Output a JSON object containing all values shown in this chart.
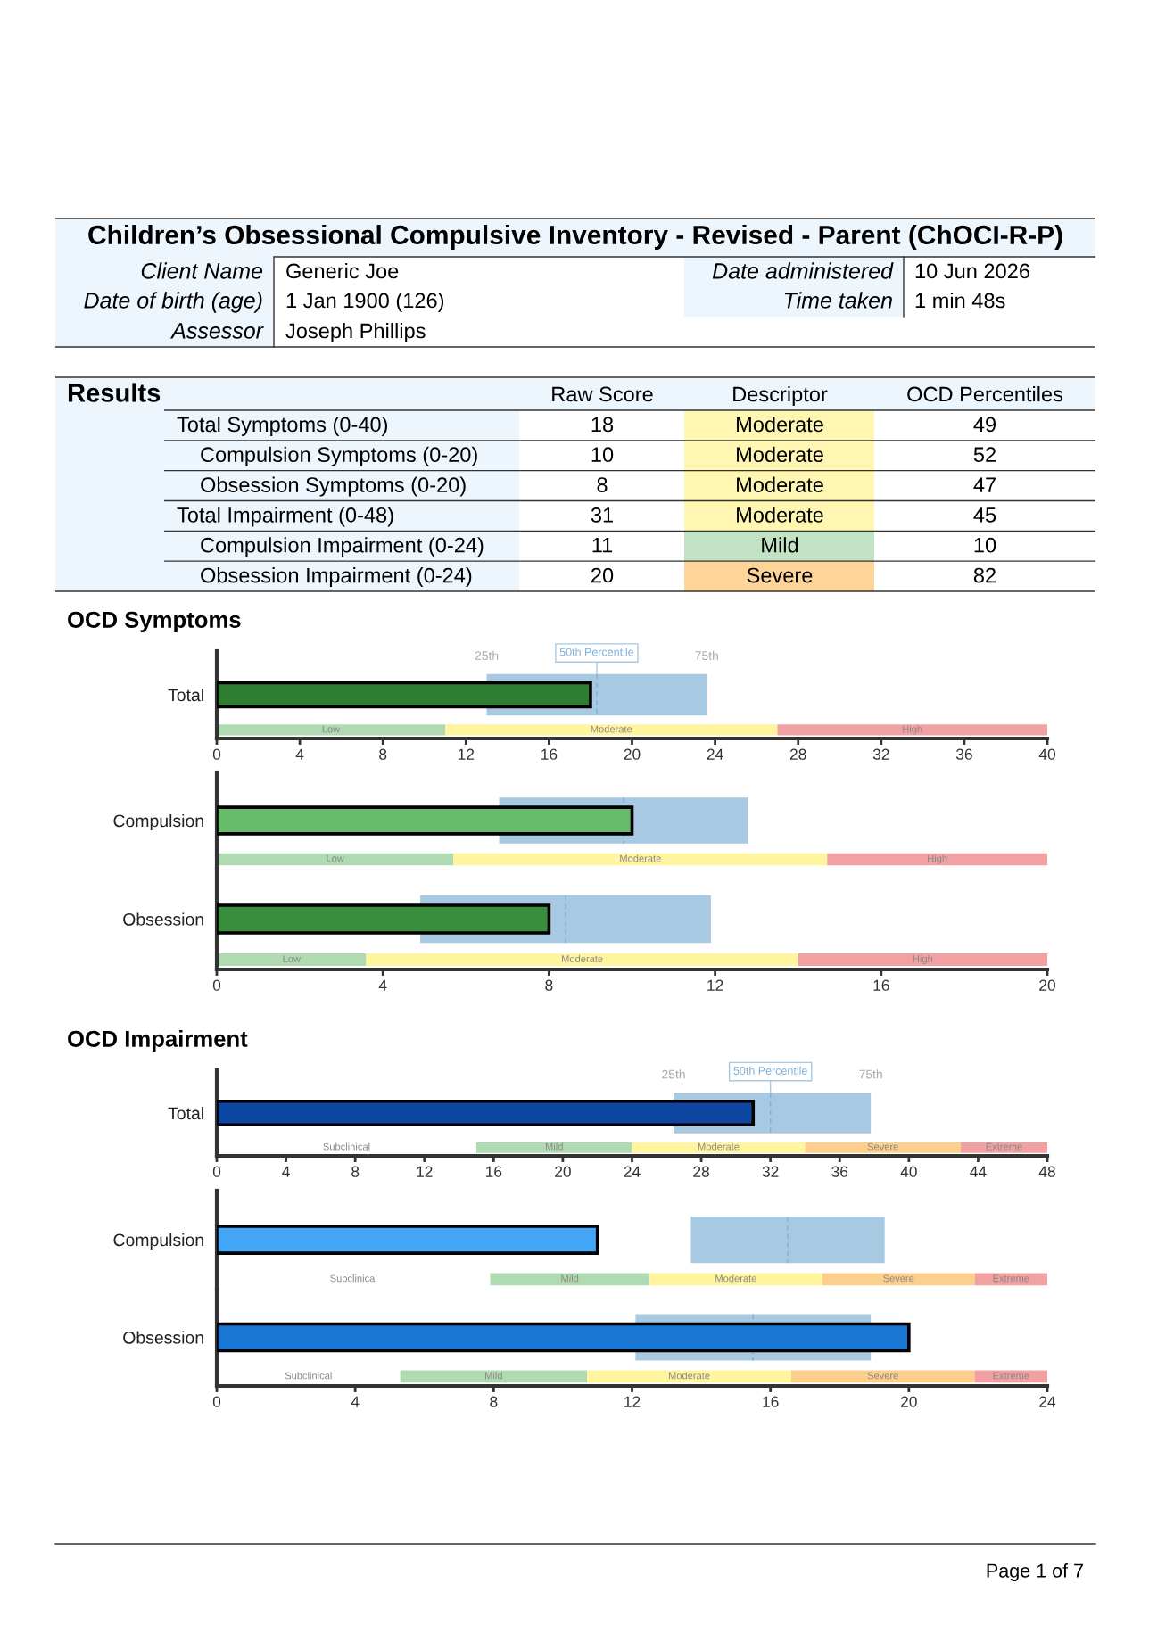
{
  "chart_data": [
    {
      "type": "other",
      "title": "Children’s Obsessional Compulsive Inventory - Revised - Parent (ChOCI-R-P)",
      "annotations": [
        "Client Name",
        "Generic Joe",
        "Date of birth (age)",
        "1 Jan 1900 (126)",
        "Assessor",
        "Joseph Phillips",
        "Date administered",
        "10 Jun 2026",
        "Time taken",
        "1 min 48s",
        "Page 1 of 7"
      ]
    },
    {
      "type": "other",
      "title": "Results",
      "annotations": [
        "Raw Score",
        "Descriptor",
        "OCD Percentiles",
        "Total Symptoms (0-40)",
        "18",
        "Moderate",
        "49",
        "Compulsion Symptoms (0-20)",
        "10",
        "Moderate",
        "52",
        "Obsession Symptoms (0-20)",
        "8",
        "Moderate",
        "47",
        "Total Impairment (0-48)",
        "31",
        "Moderate",
        "45",
        "Compulsion Impairment (0-24)",
        "11",
        "Mild",
        "10",
        "Obsession Impairment (0-24)",
        "20",
        "Severe",
        "82"
      ],
      "colors": [
        "#fff6b2",
        "#fff6b2",
        "#fff6b2",
        "#fff6b2",
        "#c2e2c4",
        "#ffd499"
      ]
    },
    {
      "type": "bar",
      "orientation": "horizontal",
      "title": "OCD Symptoms",
      "categories": [
        "Total"
      ],
      "series": [
        {
          "color": "#a7c9e2",
          "base": [
            13
          ],
          "values": [
            10.6
          ]
        },
        {
          "color": "#2e7d32",
          "values": [
            18
          ]
        }
      ],
      "xlim": [
        0,
        40
      ],
      "xticks": [
        0,
        4,
        8,
        12,
        16,
        20,
        24,
        28,
        32,
        36,
        40
      ],
      "ref_lines": [
        {
          "axis": "x",
          "value": 18.3,
          "label": "50th Percentile"
        }
      ],
      "bands": [
        {
          "axis": "x",
          "from": 0,
          "to": 11,
          "label": "Low",
          "color": "#b0dbb2"
        },
        {
          "axis": "x",
          "from": 11,
          "to": 27,
          "label": "Moderate",
          "color": "#fff59f"
        },
        {
          "axis": "x",
          "from": 27,
          "to": 40,
          "label": "High",
          "color": "#f1a1a1"
        }
      ],
      "annotations": [
        "25th",
        "75th"
      ]
    },
    {
      "type": "bar",
      "orientation": "horizontal",
      "categories": [
        "Compulsion"
      ],
      "series": [
        {
          "color": "#a7c9e2",
          "base": [
            6.8
          ],
          "values": [
            6.0
          ]
        },
        {
          "color": "#66bb6a",
          "values": [
            10
          ]
        }
      ],
      "xlim": [
        0,
        20
      ],
      "tick_labels": "y",
      "ref_lines": [
        {
          "axis": "x",
          "value": 9.8
        }
      ],
      "bands": [
        {
          "axis": "x",
          "from": 0,
          "to": 5.7,
          "label": "Low",
          "color": "#b0dbb2"
        },
        {
          "axis": "x",
          "from": 5.7,
          "to": 14.7,
          "label": "Moderate",
          "color": "#fff59f"
        },
        {
          "axis": "x",
          "from": 14.7,
          "to": 20,
          "label": "High",
          "color": "#f1a1a1"
        }
      ]
    },
    {
      "type": "bar",
      "orientation": "horizontal",
      "categories": [
        "Obsession"
      ],
      "series": [
        {
          "color": "#a7c9e2",
          "base": [
            4.9
          ],
          "values": [
            7.0
          ]
        },
        {
          "color": "#388e3c",
          "values": [
            8
          ]
        }
      ],
      "xlim": [
        0,
        20
      ],
      "xticks": [
        0,
        4,
        8,
        12,
        16,
        20
      ],
      "ref_lines": [
        {
          "axis": "x",
          "value": 8.4
        }
      ],
      "bands": [
        {
          "axis": "x",
          "from": 0,
          "to": 3.6,
          "label": "Low",
          "color": "#b0dbb2"
        },
        {
          "axis": "x",
          "from": 3.6,
          "to": 14,
          "label": "Moderate",
          "color": "#fff59f"
        },
        {
          "axis": "x",
          "from": 14,
          "to": 20,
          "label": "High",
          "color": "#f1a1a1"
        }
      ]
    },
    {
      "type": "bar",
      "orientation": "horizontal",
      "title": "OCD Impairment",
      "categories": [
        "Total"
      ],
      "series": [
        {
          "color": "#a7c9e2",
          "base": [
            26.4
          ],
          "values": [
            11.4
          ]
        },
        {
          "color": "#0d47a1",
          "values": [
            31
          ]
        }
      ],
      "xlim": [
        0,
        48
      ],
      "xticks": [
        0,
        4,
        8,
        12,
        16,
        20,
        24,
        28,
        32,
        36,
        40,
        44,
        48
      ],
      "ref_lines": [
        {
          "axis": "x",
          "value": 32,
          "label": "50th Percentile"
        }
      ],
      "bands": [
        {
          "axis": "x",
          "from": 15,
          "to": 24,
          "label": "Mild",
          "color": "#b0dbb2"
        },
        {
          "axis": "x",
          "from": 24,
          "to": 34,
          "label": "Moderate",
          "color": "#fff59f"
        },
        {
          "axis": "x",
          "from": 34,
          "to": 43,
          "label": "Severe",
          "color": "#fdcf8c"
        },
        {
          "axis": "x",
          "from": 43,
          "to": 48,
          "label": "Extreme",
          "color": "#f1a1a1"
        }
      ],
      "annotations": [
        "25th",
        "75th",
        "Subclinical"
      ]
    },
    {
      "type": "bar",
      "orientation": "horizontal",
      "categories": [
        "Compulsion"
      ],
      "series": [
        {
          "color": "#a7c9e2",
          "base": [
            13.7
          ],
          "values": [
            5.6
          ]
        },
        {
          "color": "#42a5f5",
          "values": [
            11
          ]
        }
      ],
      "xlim": [
        0,
        24
      ],
      "tick_labels": "y",
      "ref_lines": [
        {
          "axis": "x",
          "value": 16.5
        }
      ],
      "bands": [
        {
          "axis": "x",
          "from": 7.9,
          "to": 12.5,
          "label": "Mild",
          "color": "#b0dbb2"
        },
        {
          "axis": "x",
          "from": 12.5,
          "to": 17.5,
          "label": "Moderate",
          "color": "#fff59f"
        },
        {
          "axis": "x",
          "from": 17.5,
          "to": 21.9,
          "label": "Severe",
          "color": "#fdcf8c"
        },
        {
          "axis": "x",
          "from": 21.9,
          "to": 24,
          "label": "Extreme",
          "color": "#f1a1a1"
        }
      ],
      "annotations": [
        "Subclinical"
      ]
    },
    {
      "type": "bar",
      "orientation": "horizontal",
      "categories": [
        "Obsession"
      ],
      "series": [
        {
          "color": "#a7c9e2",
          "base": [
            12.1
          ],
          "values": [
            6.8
          ]
        },
        {
          "color": "#1976d2",
          "values": [
            20
          ]
        }
      ],
      "xlim": [
        0,
        24
      ],
      "xticks": [
        0,
        4,
        8,
        12,
        16,
        20,
        24
      ],
      "ref_lines": [
        {
          "axis": "x",
          "value": 15.5
        }
      ],
      "bands": [
        {
          "axis": "x",
          "from": 5.3,
          "to": 10.7,
          "label": "Mild",
          "color": "#b0dbb2"
        },
        {
          "axis": "x",
          "from": 10.7,
          "to": 16.6,
          "label": "Moderate",
          "color": "#fff59f"
        },
        {
          "axis": "x",
          "from": 16.6,
          "to": 21.9,
          "label": "Severe",
          "color": "#fdcf8c"
        },
        {
          "axis": "x",
          "from": 21.9,
          "to": 24,
          "label": "Extreme",
          "color": "#f1a1a1"
        }
      ],
      "annotations": [
        "Subclinical"
      ]
    }
  ]
}
